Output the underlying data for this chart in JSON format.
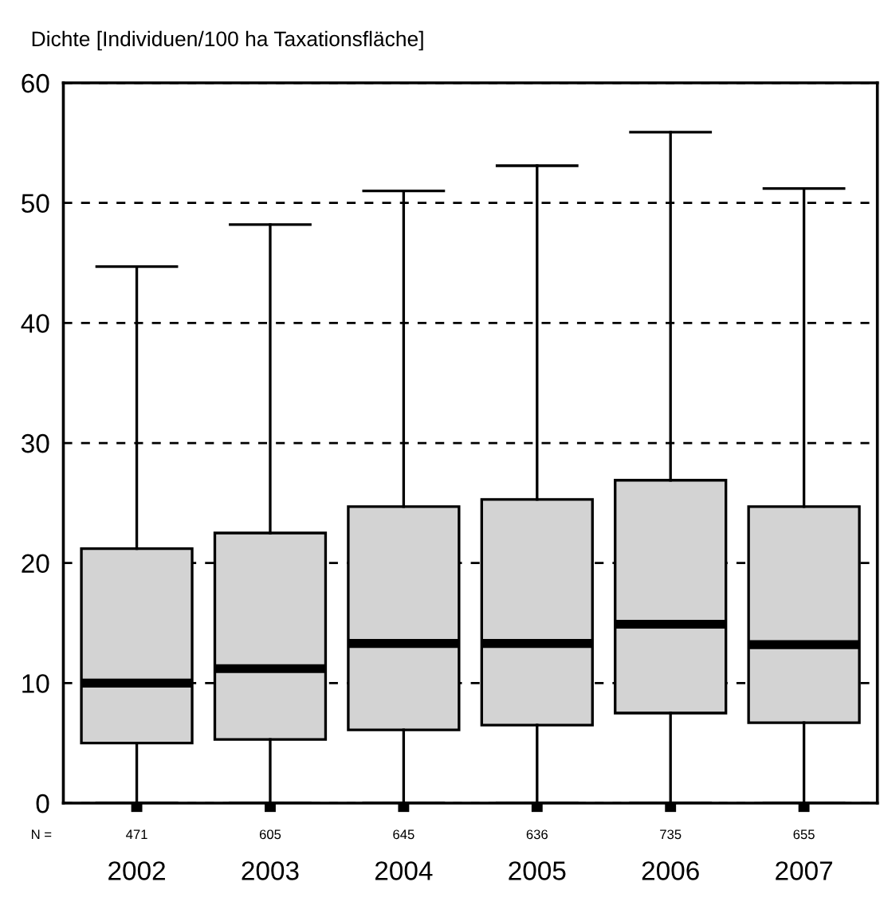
{
  "chart_data": {
    "type": "box",
    "ylabel": "Dichte [Individuen/100 ha Taxationsfläche]",
    "categories": [
      "2002",
      "2003",
      "2004",
      "2005",
      "2006",
      "2007"
    ],
    "boxes": [
      {
        "low": 0,
        "q1": 5.0,
        "median": 10.0,
        "q3": 21.2,
        "high": 44.7
      },
      {
        "low": 0,
        "q1": 5.3,
        "median": 11.2,
        "q3": 22.5,
        "high": 48.2
      },
      {
        "low": 0,
        "q1": 6.1,
        "median": 13.3,
        "q3": 24.7,
        "high": 51.0
      },
      {
        "low": 0,
        "q1": 6.5,
        "median": 13.3,
        "q3": 25.3,
        "high": 53.1
      },
      {
        "low": 0,
        "q1": 7.5,
        "median": 14.9,
        "q3": 26.9,
        "high": 55.9
      },
      {
        "low": 0,
        "q1": 6.7,
        "median": 13.2,
        "q3": 24.7,
        "high": 51.2
      }
    ],
    "color": "#d3d3d3",
    "ylim": [
      0,
      60
    ],
    "yticks": [
      0,
      10,
      20,
      30,
      40,
      50,
      60
    ],
    "grid": "y",
    "annotations": [
      "N =",
      "471",
      "605",
      "645",
      "636",
      "735",
      "655"
    ]
  }
}
